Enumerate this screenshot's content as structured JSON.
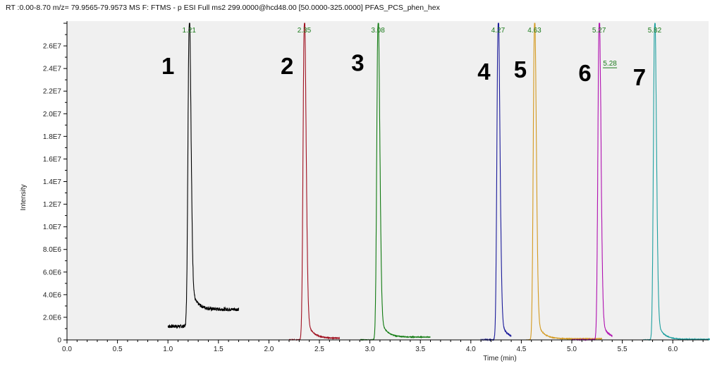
{
  "header": {
    "text": "RT :0.00-8.70 m/z= 79.9565-79.9573 MS  F: FTMS - p ESI Full ms2 299.0000@hcd48.00 [50.0000-325.0000]  PFAS_PCS_phen_hex"
  },
  "chart_data": {
    "type": "line",
    "xlabel": "Time (min)",
    "ylabel": "Intensity",
    "xlim": [
      0.0,
      6.4
    ],
    "ylim": [
      0,
      28000000
    ],
    "x_ticks": [
      "0.0",
      "0.5",
      "1.0",
      "1.5",
      "2.0",
      "2.5",
      "3.0",
      "3.5",
      "4.0",
      "4.5",
      "5.0",
      "5.5",
      "6.0"
    ],
    "x_tick_values": [
      0.0,
      0.5,
      1.0,
      1.5,
      2.0,
      2.5,
      3.0,
      3.5,
      4.0,
      4.5,
      5.0,
      5.5,
      6.0
    ],
    "y_ticks": [
      "0",
      "2.0E6",
      "4.0E6",
      "6.0E6",
      "8.0E6",
      "1.0E7",
      "1.2E7",
      "1.4E7",
      "1.6E7",
      "1.8E7",
      "2.0E7",
      "2.2E7",
      "2.4E7",
      "2.6E7"
    ],
    "y_tick_values": [
      0,
      2000000,
      4000000,
      6000000,
      8000000,
      10000000,
      12000000,
      14000000,
      16000000,
      18000000,
      20000000,
      22000000,
      24000000,
      26000000
    ],
    "grid": false,
    "series": [
      {
        "name": "1",
        "color": "#000000",
        "range": [
          1.0,
          1.7
        ],
        "rt": 1.21,
        "peak_height": 27800000,
        "baseline": 1200000,
        "tail": 1500000,
        "label": "1.21"
      },
      {
        "name": "2",
        "color": "#a01020",
        "range": [
          2.2,
          2.7
        ],
        "rt": 2.35,
        "peak_height": 27800000,
        "baseline": 0,
        "tail": 150000,
        "label": "2.35"
      },
      {
        "name": "3",
        "color": "#107a10",
        "range": [
          2.9,
          3.6
        ],
        "rt": 3.08,
        "peak_height": 27800000,
        "baseline": 0,
        "tail": 250000,
        "label": "3.08"
      },
      {
        "name": "4",
        "color": "#1a1a9a",
        "range": [
          4.1,
          4.4
        ],
        "rt": 4.27,
        "peak_height": 27800000,
        "baseline": 0,
        "tail": 100000,
        "label": "4.27"
      },
      {
        "name": "5",
        "color": "#d49a20",
        "range": [
          4.55,
          5.3
        ],
        "rt": 4.63,
        "peak_height": 27800000,
        "baseline": 0,
        "tail": 100000,
        "label": "4.63"
      },
      {
        "name": "6",
        "color": "#b010b0",
        "range": [
          5.0,
          5.4
        ],
        "rt": 5.27,
        "peak_height": 27800000,
        "baseline": 0,
        "tail": 100000,
        "label": "5.27",
        "shoulder": {
          "rt": 5.28,
          "height": 24000000,
          "label": "5.28"
        }
      },
      {
        "name": "7",
        "color": "#20a0a0",
        "range": [
          5.7,
          6.4
        ],
        "rt": 5.82,
        "peak_height": 27800000,
        "baseline": 0,
        "tail": 50000,
        "label": "5.82"
      }
    ],
    "peak_numbers": [
      {
        "text": "1",
        "x": 1.0,
        "y": 23500000
      },
      {
        "text": "2",
        "x": 2.18,
        "y": 23500000
      },
      {
        "text": "3",
        "x": 2.88,
        "y": 23800000
      },
      {
        "text": "4",
        "x": 4.13,
        "y": 23000000
      },
      {
        "text": "5",
        "x": 4.49,
        "y": 23200000
      },
      {
        "text": "6",
        "x": 5.13,
        "y": 22900000
      },
      {
        "text": "7",
        "x": 5.67,
        "y": 22500000
      }
    ]
  }
}
